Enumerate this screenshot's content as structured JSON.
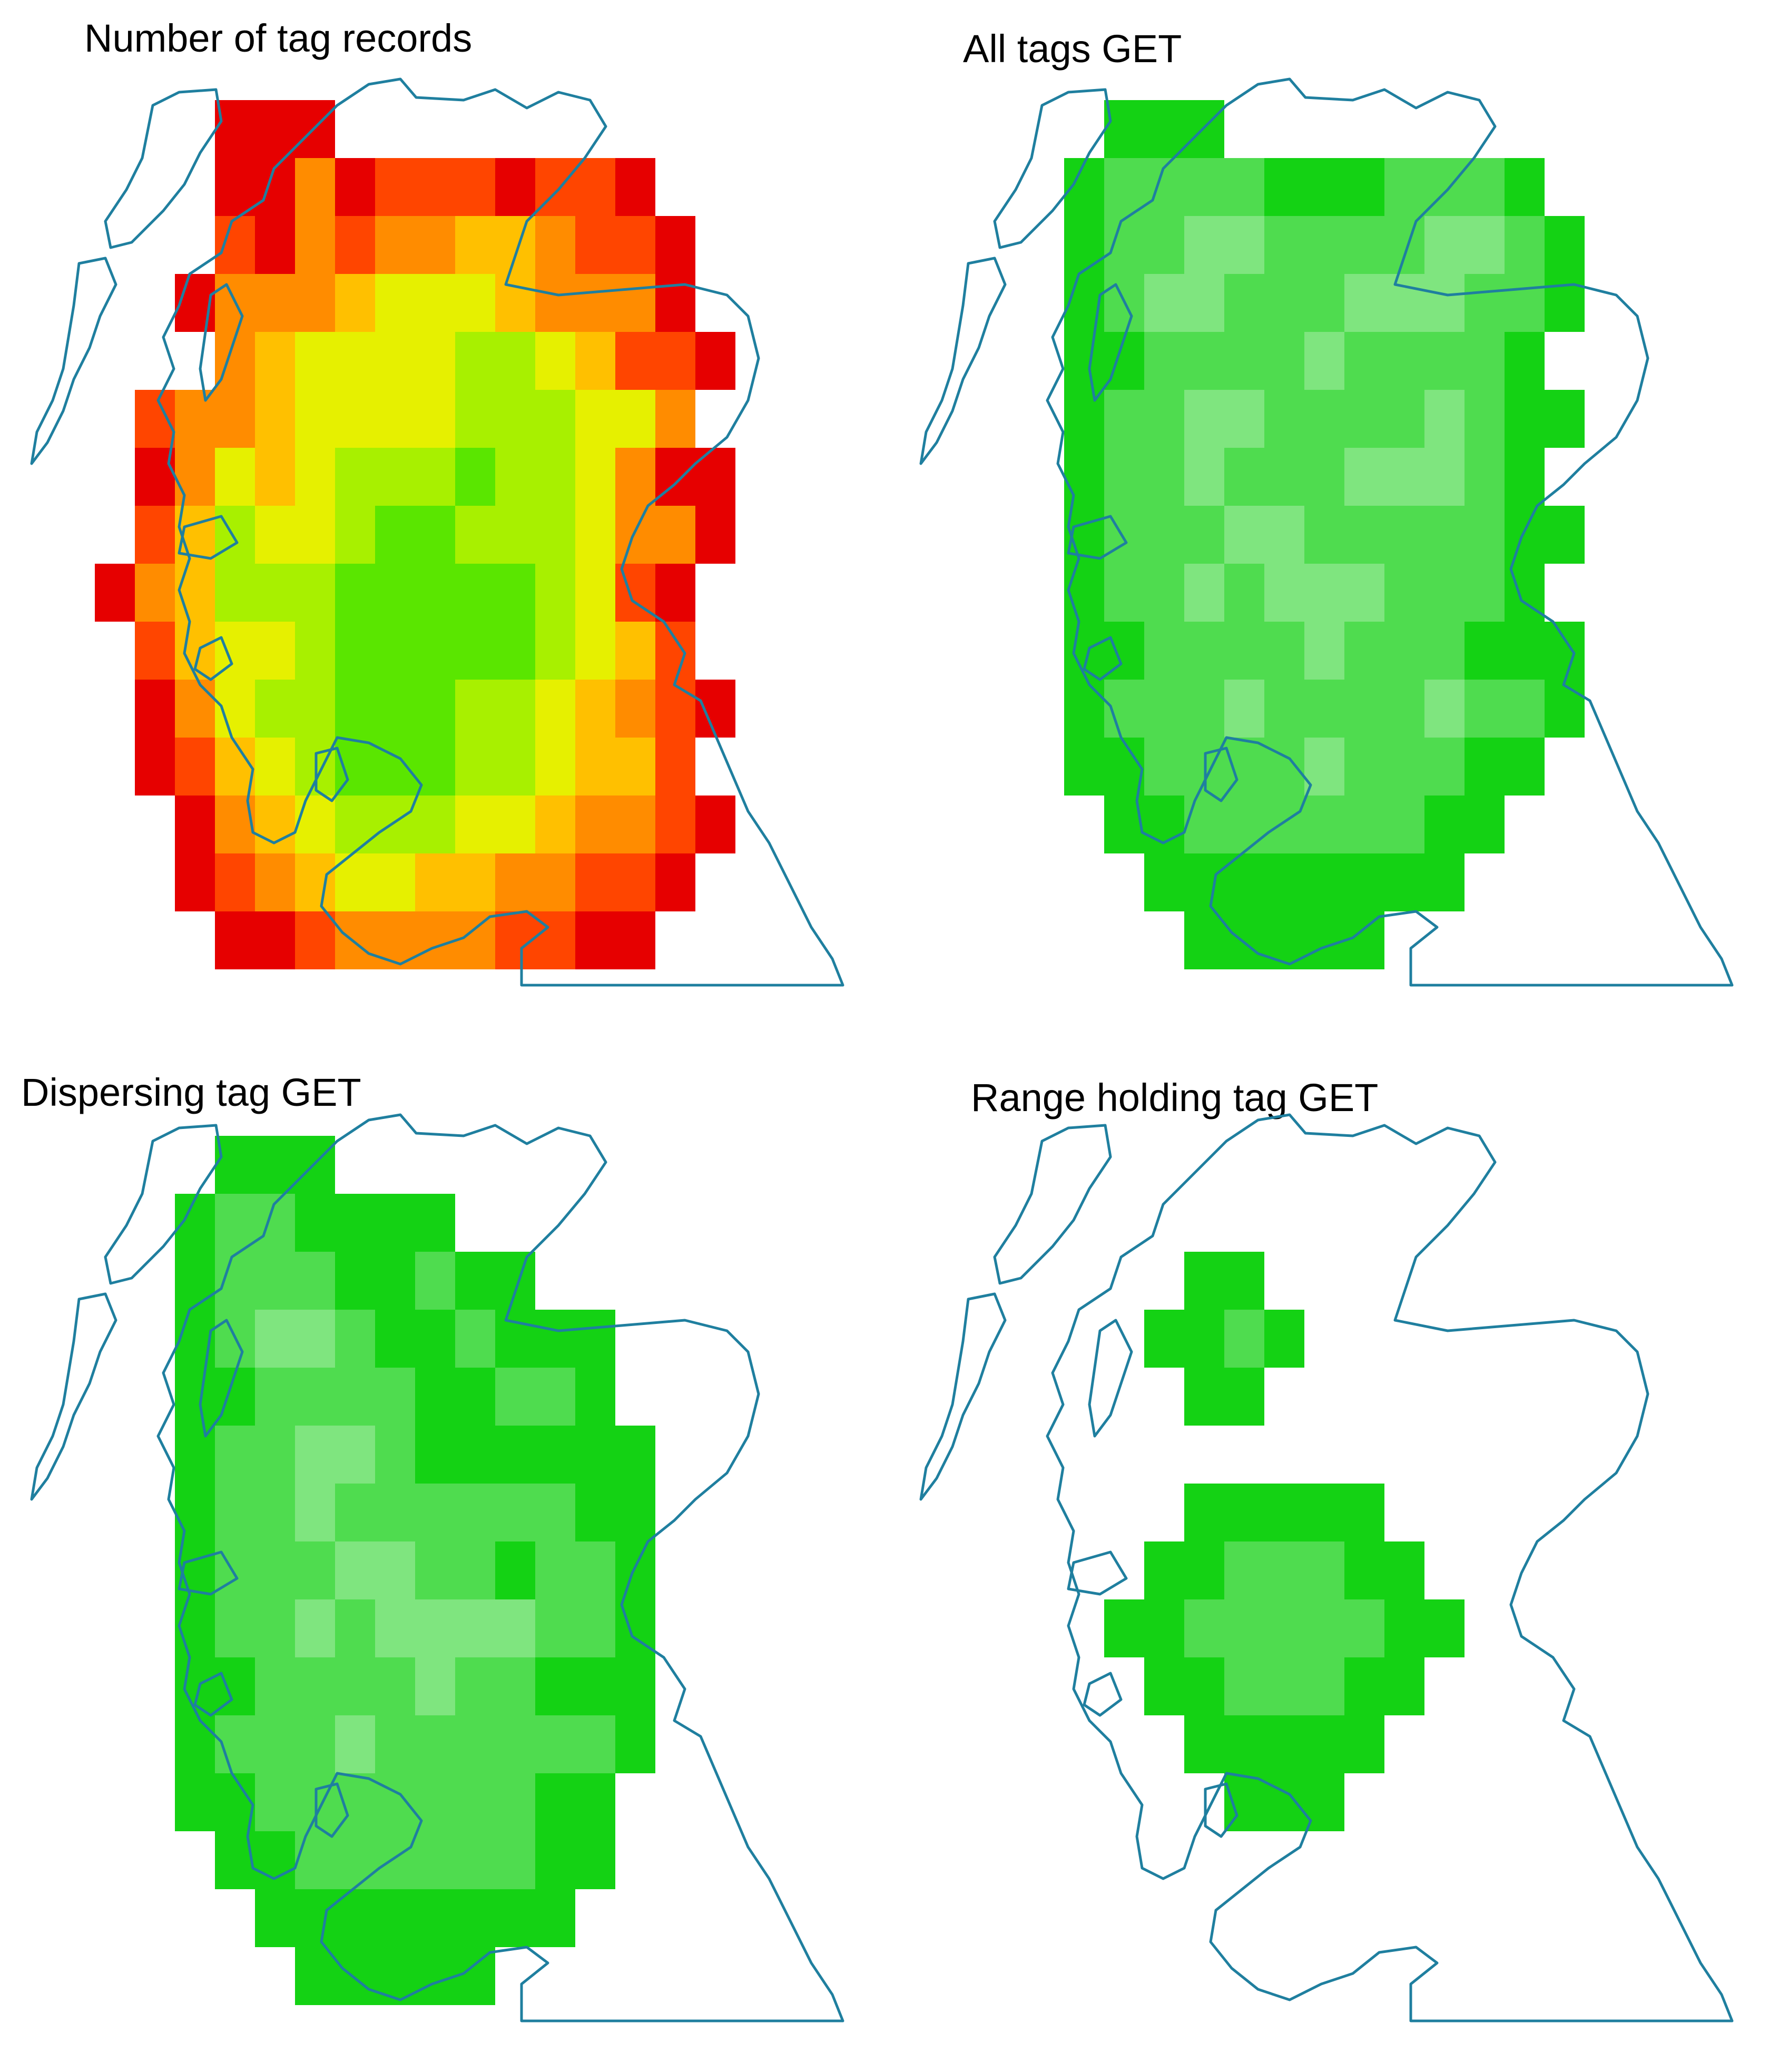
{
  "panels": [
    {
      "id": "tag-records",
      "title": "Number of tag records",
      "palette": "heat"
    },
    {
      "id": "all-tags",
      "title": "All tags GET",
      "palette": "get"
    },
    {
      "id": "dispersing",
      "title": "Dispersing tag GET",
      "palette": "get"
    },
    {
      "id": "range-holding",
      "title": "Range holding tag GET",
      "palette": "get"
    }
  ],
  "colors": {
    "coastline": "#1f7f9f",
    "heat": [
      "#e60000",
      "#ff4500",
      "#ff8c00",
      "#ffc000",
      "#e6f000",
      "#a8f000",
      "#5ae600",
      "#1ee600"
    ],
    "get": [
      "#14d214",
      "#4fdc4f",
      "#7fe57f",
      "#a8f0a8",
      "#fcd6d6",
      "#f58a8a"
    ]
  },
  "map_cells": {
    "tag-records": [
      [
        "0001110000000000",
        "0001131222122100",
        "0002132334432210",
        "0013334555433310",
        "0003455556654221"
      ],
      [
        "0233455556665530",
        "0135456667665311",
        "0246556776665331",
        "1346667777765210",
        "0245567777765420"
      ],
      [
        "0135667776654321",
        "0124567776654420",
        "0013456665543321",
        "0012345544332210",
        "0001123333221100"
      ]
    ],
    "all-tags": [
      [
        "0001110000000000",
        "0012222111222100",
        "0012233222233210",
        "0012332223332210",
        "0011222232222100"
      ],
      [
        "0012233222232110",
        "0012232223332100",
        "0012223322222110",
        "0012232333222100",
        "0011222232221110"
      ],
      [
        "0012223222232210",
        "0011222232221100",
        "0001122222211000",
        "0000111111110000",
        "0000011111000000"
      ]
    ],
    "dispersing": [
      [
        "0001110000000000",
        "0012211110000000",
        "0012221121100000",
        "0012332112111000",
        "0011222211221000"
      ],
      [
        "0012233211111100",
        "0012232222221100",
        "0012223322122100",
        "0012232333322100",
        "0011222232211100"
      ],
      [
        "0012223222222100",
        "0011222222211000",
        "0001122222211000",
        "0000111111110000",
        "0000011111000000"
      ]
    ],
    "range-holding": [
      [
        "0000000000000000",
        "0000000000000000",
        "0000011000000000",
        "0000112100000000",
        "0000011000000000"
      ],
      [
        "0000000000000000",
        "0000011111000000",
        "0000112221100000",
        "0001122222110000",
        "0000112221100000"
      ],
      [
        "0000011111000000",
        "0000001110000000",
        "0000000000000000",
        "0000000000000000",
        "0000000000000000"
      ]
    ]
  }
}
